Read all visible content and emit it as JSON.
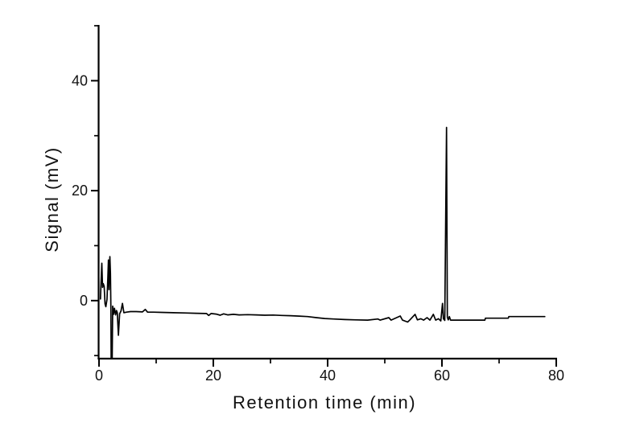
{
  "figure": {
    "background_color": "#ffffff",
    "axis_color": "#000000",
    "trace_color": "#000000"
  },
  "chart_data": {
    "type": "line",
    "title": "",
    "xlabel": "Retention time (min)",
    "ylabel": "Signal (mV)",
    "xlim": [
      0,
      80
    ],
    "ylim": [
      -10.7,
      50
    ],
    "x_major_ticks": [
      0,
      20,
      40,
      60,
      80
    ],
    "x_minor_ticks": [
      10,
      30,
      50,
      70
    ],
    "y_major_ticks": [
      0,
      20,
      40
    ],
    "y_minor_ticks": [
      -10,
      10,
      30,
      50
    ],
    "grid": false,
    "legend": "none",
    "series": [
      {
        "name": "chromatogram-trace",
        "color": "#000000",
        "points": [
          [
            0.25,
            0.3
          ],
          [
            0.35,
            3.2
          ],
          [
            0.5,
            6.8
          ],
          [
            0.62,
            2.4
          ],
          [
            0.75,
            3.1
          ],
          [
            0.9,
            2.6
          ],
          [
            1.05,
            -0.6
          ],
          [
            1.2,
            -1.1
          ],
          [
            1.4,
            0.2
          ],
          [
            1.55,
            4.2
          ],
          [
            1.65,
            7.4
          ],
          [
            1.75,
            2.0
          ],
          [
            1.9,
            8.0
          ],
          [
            2.0,
            5.0
          ],
          [
            2.08,
            -2.0
          ],
          [
            2.12,
            -11.5
          ],
          [
            2.3,
            -11.5
          ],
          [
            2.4,
            -1.0
          ],
          [
            2.55,
            -2.5
          ],
          [
            2.7,
            -1.4
          ],
          [
            2.9,
            -2.6
          ],
          [
            3.05,
            -1.8
          ],
          [
            3.2,
            -2.2
          ],
          [
            3.4,
            -6.3
          ],
          [
            3.6,
            -2.4
          ],
          [
            3.85,
            -1.9
          ],
          [
            4.1,
            -0.5
          ],
          [
            4.35,
            -2.2
          ],
          [
            4.8,
            -2.1
          ],
          [
            5.5,
            -2.0
          ],
          [
            6.5,
            -2.0
          ],
          [
            7.6,
            -2.05
          ],
          [
            8.1,
            -1.6
          ],
          [
            8.5,
            -2.1
          ],
          [
            9.5,
            -2.1
          ],
          [
            11,
            -2.15
          ],
          [
            13,
            -2.2
          ],
          [
            15,
            -2.25
          ],
          [
            17,
            -2.3
          ],
          [
            18.8,
            -2.35
          ],
          [
            19.2,
            -2.7
          ],
          [
            19.6,
            -2.35
          ],
          [
            20.5,
            -2.45
          ],
          [
            21.2,
            -2.65
          ],
          [
            21.8,
            -2.4
          ],
          [
            22.5,
            -2.6
          ],
          [
            23.5,
            -2.5
          ],
          [
            24.5,
            -2.6
          ],
          [
            26,
            -2.55
          ],
          [
            27.5,
            -2.6
          ],
          [
            29,
            -2.65
          ],
          [
            30.5,
            -2.62
          ],
          [
            32,
            -2.7
          ],
          [
            33.5,
            -2.75
          ],
          [
            35,
            -2.82
          ],
          [
            36.5,
            -2.9
          ],
          [
            38,
            -3.1
          ],
          [
            39.5,
            -3.25
          ],
          [
            41,
            -3.35
          ],
          [
            43,
            -3.45
          ],
          [
            45,
            -3.5
          ],
          [
            47,
            -3.55
          ],
          [
            48.8,
            -3.35
          ],
          [
            49.2,
            -3.55
          ],
          [
            50.7,
            -3.1
          ],
          [
            51.1,
            -3.55
          ],
          [
            52.7,
            -2.8
          ],
          [
            53.1,
            -3.55
          ],
          [
            54.0,
            -3.9
          ],
          [
            54.4,
            -3.5
          ],
          [
            55.3,
            -2.5
          ],
          [
            55.7,
            -3.5
          ],
          [
            56.3,
            -3.3
          ],
          [
            56.8,
            -3.55
          ],
          [
            57.4,
            -3.1
          ],
          [
            57.9,
            -3.55
          ],
          [
            58.5,
            -2.5
          ],
          [
            58.9,
            -3.55
          ],
          [
            59.4,
            -3.3
          ],
          [
            59.8,
            -3.7
          ],
          [
            60.1,
            -0.5
          ],
          [
            60.25,
            -3.3
          ],
          [
            60.5,
            -3.6
          ],
          [
            60.8,
            31.5
          ],
          [
            60.95,
            -3.0
          ],
          [
            61.1,
            -3.5
          ],
          [
            61.3,
            -2.9
          ],
          [
            61.5,
            -3.55
          ],
          [
            63,
            -3.55
          ],
          [
            65,
            -3.55
          ],
          [
            67.5,
            -3.55
          ],
          [
            67.6,
            -3.2
          ],
          [
            69.5,
            -3.2
          ],
          [
            71.6,
            -3.2
          ],
          [
            71.7,
            -2.9
          ],
          [
            74,
            -2.9
          ],
          [
            76,
            -2.9
          ],
          [
            78,
            -2.9
          ]
        ]
      }
    ],
    "annotations": {
      "main_peak": {
        "retention_time_min": 60.8,
        "height_mV": 31.5
      },
      "injection_disturbance": "noise spikes 0-4 min, off-scale negative spike at ~2.2 min clipped at plot bottom",
      "baseline_mV_range": [
        -3.6,
        -2.0
      ]
    }
  }
}
